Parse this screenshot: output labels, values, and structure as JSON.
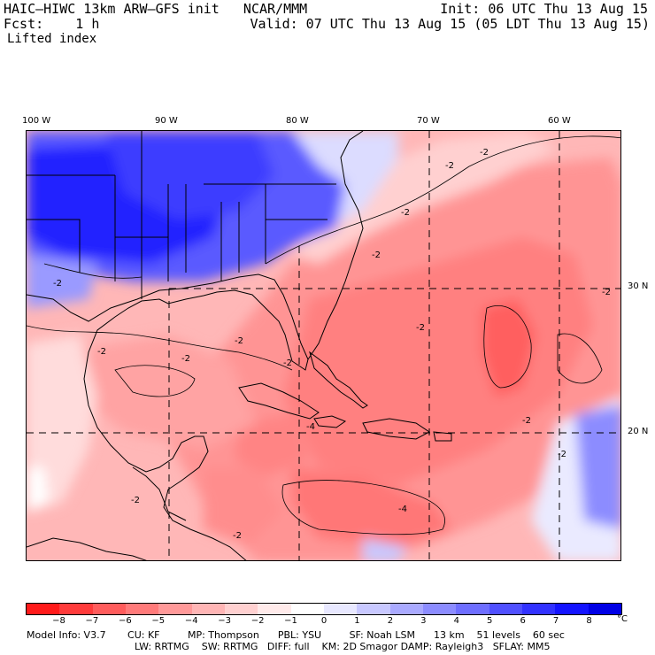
{
  "header": {
    "title": "HAIC–HIWC 13km ARW–GFS init   NCAR/MMM",
    "fcst": "Fcst:    1 h",
    "field": "Lifted index",
    "init": "Init: 06 UTC Thu 13 Aug 15",
    "valid": "Valid: 07 UTC Thu 13 Aug 15 (05 LDT Thu 13 Aug 15)"
  },
  "axes": {
    "lon_labels": [
      "100 W",
      "90 W",
      "80 W",
      "70 W",
      "60 W"
    ],
    "lat_labels": [
      "30 N",
      "20 N"
    ]
  },
  "contour_labels": [
    "-2",
    "-2",
    "-2",
    "-2",
    "-2",
    "-2",
    "-2",
    "-2",
    "-2",
    "-2",
    "-2",
    "-4",
    "-4",
    "-2",
    "-2",
    "-2",
    "-2"
  ],
  "colorbar": {
    "colors": [
      "#ff1a1a",
      "#ff3b3b",
      "#ff5c5c",
      "#ff7a7a",
      "#ff9999",
      "#ffb5b5",
      "#ffd0d0",
      "#ffeaea",
      "#ffffff",
      "#e8e8ff",
      "#c8c8ff",
      "#aaaaff",
      "#8c8cff",
      "#6e6eff",
      "#5050ff",
      "#3232ff",
      "#1414ff",
      "#0000e6"
    ],
    "labels": [
      "−8",
      "−7",
      "−6",
      "−5",
      "−4",
      "−3",
      "−2",
      "−1",
      "0",
      "1",
      "2",
      "3",
      "4",
      "5",
      "6",
      "7",
      "8"
    ],
    "unit": "°C"
  },
  "model_info": {
    "line1": "Model Info: V3.7       CU: KF         MP: Thompson      PBL: YSU         SF: Noah LSM      13 km    51 levels    60 sec",
    "line2": "LW: RRTMG    SW: RRTMG   DIFF: full    KM: 2D Smagor DAMP: Rayleigh3   SFLAY: MM5"
  }
}
